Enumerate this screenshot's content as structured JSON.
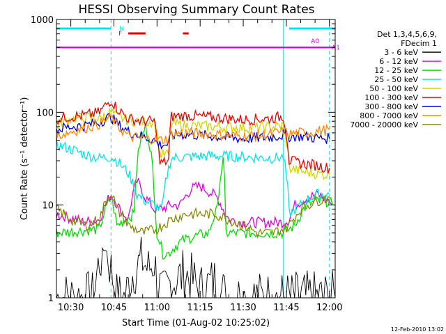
{
  "chart_data": {
    "type": "line",
    "title": "HESSI Observing Summary Count Rates",
    "xlabel": "Start Time (01-Aug-02 10:25:02)",
    "ylabel": "Count Rate (s⁻¹ detector⁻¹)",
    "x_range": [
      "10:25",
      "12:02"
    ],
    "y_log": true,
    "ylim": [
      1,
      1000
    ],
    "x_ticks": [
      "10:30",
      "10:45",
      "11:00",
      "11:15",
      "11:30",
      "11:45",
      "12:00"
    ],
    "y_ticks": [
      "1",
      "10",
      "100",
      "1000"
    ],
    "legend_title": [
      "Det 1,3,4,5,6,9,",
      "FDecim 1"
    ],
    "legend_position": "right",
    "flags": {
      "night": {
        "label": "N",
        "color": "#00e5e5",
        "segments": [
          [
            "10:25",
            "10:44"
          ],
          [
            "11:46",
            "12:02"
          ]
        ]
      },
      "flare": {
        "label": "F",
        "color": "#ee0000",
        "segments": [
          [
            "10:50",
            "10:56"
          ],
          [
            "11:09",
            "11:11"
          ]
        ]
      },
      "attenuator": {
        "label": "A0",
        "color": "#e000e0",
        "level": 500
      },
      "attenuator_end_label": "A1",
      "vlines": [
        "10:25",
        "10:44",
        "11:44",
        "12:00"
      ]
    },
    "series": [
      {
        "name": "3 - 6 keV",
        "color": "#000000",
        "points": [
          [
            "10:25",
            1
          ],
          [
            "10:38",
            1
          ],
          [
            "10:40",
            2.5
          ],
          [
            "10:42",
            3.5
          ],
          [
            "10:44",
            2
          ],
          [
            "10:46",
            1
          ],
          [
            "10:49",
            1
          ],
          [
            "10:52",
            2
          ],
          [
            "10:55",
            2.5
          ],
          [
            "10:57",
            2
          ],
          [
            "10:59",
            2.5
          ],
          [
            "11:00",
            1.5
          ],
          [
            "11:02",
            1
          ],
          [
            "11:05",
            1.5
          ],
          [
            "11:10",
            1.8
          ],
          [
            "11:15",
            1.2
          ],
          [
            "11:20",
            1.5
          ],
          [
            "11:24",
            1
          ],
          [
            "11:25",
            1
          ],
          [
            "12:02",
            1
          ]
        ]
      },
      {
        "name": "6 - 12 keV",
        "color": "#e000e0",
        "points": [
          [
            "10:25",
            8
          ],
          [
            "10:35",
            6.5
          ],
          [
            "10:40",
            7
          ],
          [
            "10:44",
            13
          ],
          [
            "10:47",
            9
          ],
          [
            "10:50",
            7
          ],
          [
            "10:53",
            18
          ],
          [
            "10:56",
            12
          ],
          [
            "10:59",
            9
          ],
          [
            "11:01",
            9
          ],
          [
            "11:05",
            10
          ],
          [
            "11:08",
            10
          ],
          [
            "11:12",
            15
          ],
          [
            "11:15",
            16
          ],
          [
            "11:18",
            14
          ],
          [
            "11:21",
            12
          ],
          [
            "11:23",
            9
          ],
          [
            "11:25",
            7
          ],
          [
            "11:30",
            6.5
          ],
          [
            "11:44",
            6.5
          ],
          [
            "11:46",
            7
          ],
          [
            "11:48",
            10
          ],
          [
            "11:52",
            12
          ],
          [
            "11:56",
            13
          ],
          [
            "12:00",
            11
          ],
          [
            "12:01",
            10
          ]
        ]
      },
      {
        "name": "12 - 25 keV",
        "color": "#00dd00",
        "points": [
          [
            "10:25",
            5
          ],
          [
            "10:40",
            5.5
          ],
          [
            "10:44",
            12
          ],
          [
            "10:46",
            6
          ],
          [
            "10:52",
            8
          ],
          [
            "10:54",
            45
          ],
          [
            "10:56",
            70
          ],
          [
            "10:58",
            35
          ],
          [
            "10:59",
            12
          ],
          [
            "11:00",
            5
          ],
          [
            "11:02",
            3
          ],
          [
            "11:04",
            3
          ],
          [
            "11:08",
            4
          ],
          [
            "11:12",
            4.5
          ],
          [
            "11:18",
            5
          ],
          [
            "11:21",
            9
          ],
          [
            "11:23",
            30
          ],
          [
            "11:24",
            5
          ],
          [
            "11:30",
            5
          ],
          [
            "11:44",
            5
          ],
          [
            "11:48",
            6
          ],
          [
            "11:52",
            10
          ],
          [
            "11:56",
            11
          ],
          [
            "12:00",
            11
          ],
          [
            "12:01",
            10
          ]
        ]
      },
      {
        "name": "25 - 50 keV",
        "color": "#00e5e5",
        "points": [
          [
            "10:25",
            45
          ],
          [
            "10:30",
            40
          ],
          [
            "10:35",
            35
          ],
          [
            "10:40",
            32
          ],
          [
            "10:44",
            33
          ],
          [
            "10:46",
            30
          ],
          [
            "10:50",
            22
          ],
          [
            "10:53",
            13
          ],
          [
            "10:56",
            11
          ],
          [
            "10:59",
            10
          ],
          [
            "11:01",
            9
          ],
          [
            "11:02",
            10
          ],
          [
            "11:05",
            32
          ],
          [
            "11:10",
            33
          ],
          [
            "11:20",
            34
          ],
          [
            "11:30",
            33
          ],
          [
            "11:40",
            32
          ],
          [
            "11:44",
            33
          ],
          [
            "11:46",
            8
          ],
          [
            "11:50",
            10
          ],
          [
            "11:55",
            13
          ],
          [
            "12:00",
            13
          ]
        ]
      },
      {
        "name": "50 - 100 keV",
        "color": "#d4d400",
        "points": [
          [
            "10:25",
            72
          ],
          [
            "10:30",
            85
          ],
          [
            "10:35",
            88
          ],
          [
            "10:40",
            85
          ],
          [
            "10:44",
            100
          ],
          [
            "10:46",
            90
          ],
          [
            "10:50",
            82
          ],
          [
            "10:55",
            78
          ],
          [
            "10:59",
            80
          ],
          [
            "11:01",
            35
          ],
          [
            "11:04",
            35
          ],
          [
            "11:05",
            75
          ],
          [
            "11:10",
            72
          ],
          [
            "11:20",
            70
          ],
          [
            "11:30",
            68
          ],
          [
            "11:40",
            69
          ],
          [
            "11:44",
            72
          ],
          [
            "11:46",
            25
          ],
          [
            "11:50",
            23
          ],
          [
            "11:55",
            22
          ],
          [
            "12:00",
            21
          ]
        ]
      },
      {
        "name": "100 - 300 keV",
        "color": "#ee0000",
        "points": [
          [
            "10:25",
            85
          ],
          [
            "10:30",
            90
          ],
          [
            "10:35",
            92
          ],
          [
            "10:40",
            100
          ],
          [
            "10:44",
            135
          ],
          [
            "10:46",
            110
          ],
          [
            "10:50",
            85
          ],
          [
            "10:55",
            80
          ],
          [
            "10:59",
            80
          ],
          [
            "11:01",
            28
          ],
          [
            "11:04",
            30
          ],
          [
            "11:05",
            90
          ],
          [
            "11:10",
            92
          ],
          [
            "11:20",
            88
          ],
          [
            "11:30",
            83
          ],
          [
            "11:40",
            86
          ],
          [
            "11:44",
            90
          ],
          [
            "11:46",
            30
          ],
          [
            "11:50",
            28
          ],
          [
            "11:55",
            27
          ],
          [
            "12:00",
            25
          ]
        ]
      },
      {
        "name": "300 - 800 keV",
        "color": "#0000dd",
        "points": [
          [
            "10:25",
            65
          ],
          [
            "10:30",
            70
          ],
          [
            "10:35",
            72
          ],
          [
            "10:40",
            78
          ],
          [
            "10:44",
            90
          ],
          [
            "10:46",
            75
          ],
          [
            "10:50",
            62
          ],
          [
            "10:55",
            55
          ],
          [
            "10:59",
            50
          ],
          [
            "11:01",
            45
          ],
          [
            "11:04",
            45
          ],
          [
            "11:05",
            57
          ],
          [
            "11:10",
            58
          ],
          [
            "11:20",
            55
          ],
          [
            "11:30",
            52
          ],
          [
            "11:40",
            54
          ],
          [
            "11:44",
            57
          ],
          [
            "11:46",
            55
          ],
          [
            "11:50",
            55
          ],
          [
            "11:55",
            53
          ],
          [
            "12:00",
            52
          ]
        ]
      },
      {
        "name": "800 - 7000 keV",
        "color": "#ff8800",
        "points": [
          [
            "10:25",
            55
          ],
          [
            "10:30",
            62
          ],
          [
            "10:35",
            68
          ],
          [
            "10:40",
            75
          ],
          [
            "10:44",
            88
          ],
          [
            "10:46",
            72
          ],
          [
            "10:50",
            55
          ],
          [
            "10:55",
            52
          ],
          [
            "10:59",
            52
          ],
          [
            "11:01",
            50
          ],
          [
            "11:04",
            52
          ],
          [
            "11:05",
            58
          ],
          [
            "11:10",
            60
          ],
          [
            "11:20",
            58
          ],
          [
            "11:30",
            55
          ],
          [
            "11:40",
            58
          ],
          [
            "11:44",
            62
          ],
          [
            "11:46",
            58
          ],
          [
            "11:50",
            60
          ],
          [
            "11:55",
            62
          ],
          [
            "12:00",
            65
          ]
        ]
      },
      {
        "name": "7000 - 20000 keV",
        "color": "#888800",
        "points": [
          [
            "10:25",
            9
          ],
          [
            "10:30",
            7
          ],
          [
            "10:35",
            6
          ],
          [
            "10:40",
            7
          ],
          [
            "10:44",
            14
          ],
          [
            "10:46",
            9
          ],
          [
            "10:50",
            6
          ],
          [
            "10:55",
            5
          ],
          [
            "11:00",
            5.5
          ],
          [
            "11:05",
            7
          ],
          [
            "11:10",
            8
          ],
          [
            "11:15",
            8
          ],
          [
            "11:20",
            8
          ],
          [
            "11:25",
            7
          ],
          [
            "11:30",
            6
          ],
          [
            "11:35",
            5
          ],
          [
            "11:40",
            5
          ],
          [
            "11:44",
            5.5
          ],
          [
            "11:46",
            6
          ],
          [
            "11:50",
            9
          ],
          [
            "11:55",
            11
          ],
          [
            "12:00",
            12
          ]
        ]
      }
    ]
  },
  "footer_date": "12-Feb-2010 13:02"
}
